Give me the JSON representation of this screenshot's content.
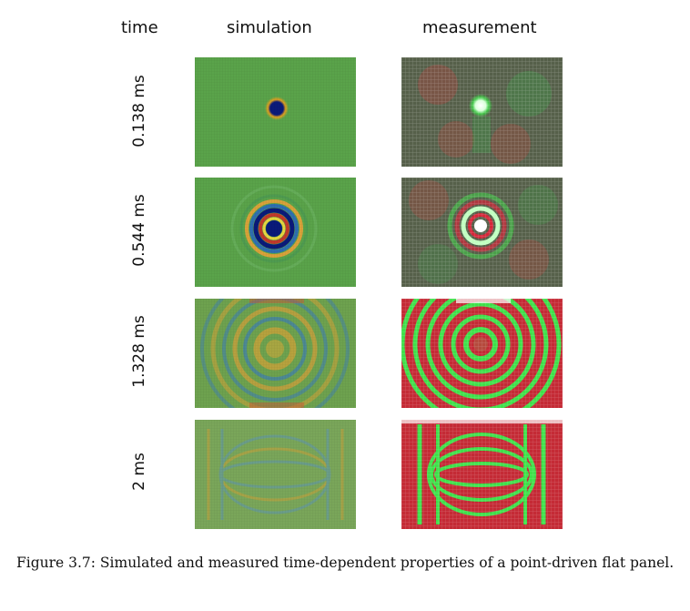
{
  "columns": {
    "time": "time",
    "simulation": "simulation",
    "measurement": "measurement"
  },
  "rows": [
    {
      "time": "0.138 ms",
      "stage": 1
    },
    {
      "time": "0.544 ms",
      "stage": 2
    },
    {
      "time": "1.328 ms",
      "stage": 3
    },
    {
      "time": "2 ms",
      "stage": 4
    }
  ],
  "caption": "Figure 3.7: Simulated and measured time-dependent properties of a point-driven flat panel.",
  "colors": {
    "sim_background": "#5aa34a",
    "sim_positive": "#c0392b",
    "sim_negative": "#0a1a7a",
    "meas_background": "#4f5a45",
    "meas_red": "#d4283a",
    "meas_green": "#3fe04a"
  }
}
